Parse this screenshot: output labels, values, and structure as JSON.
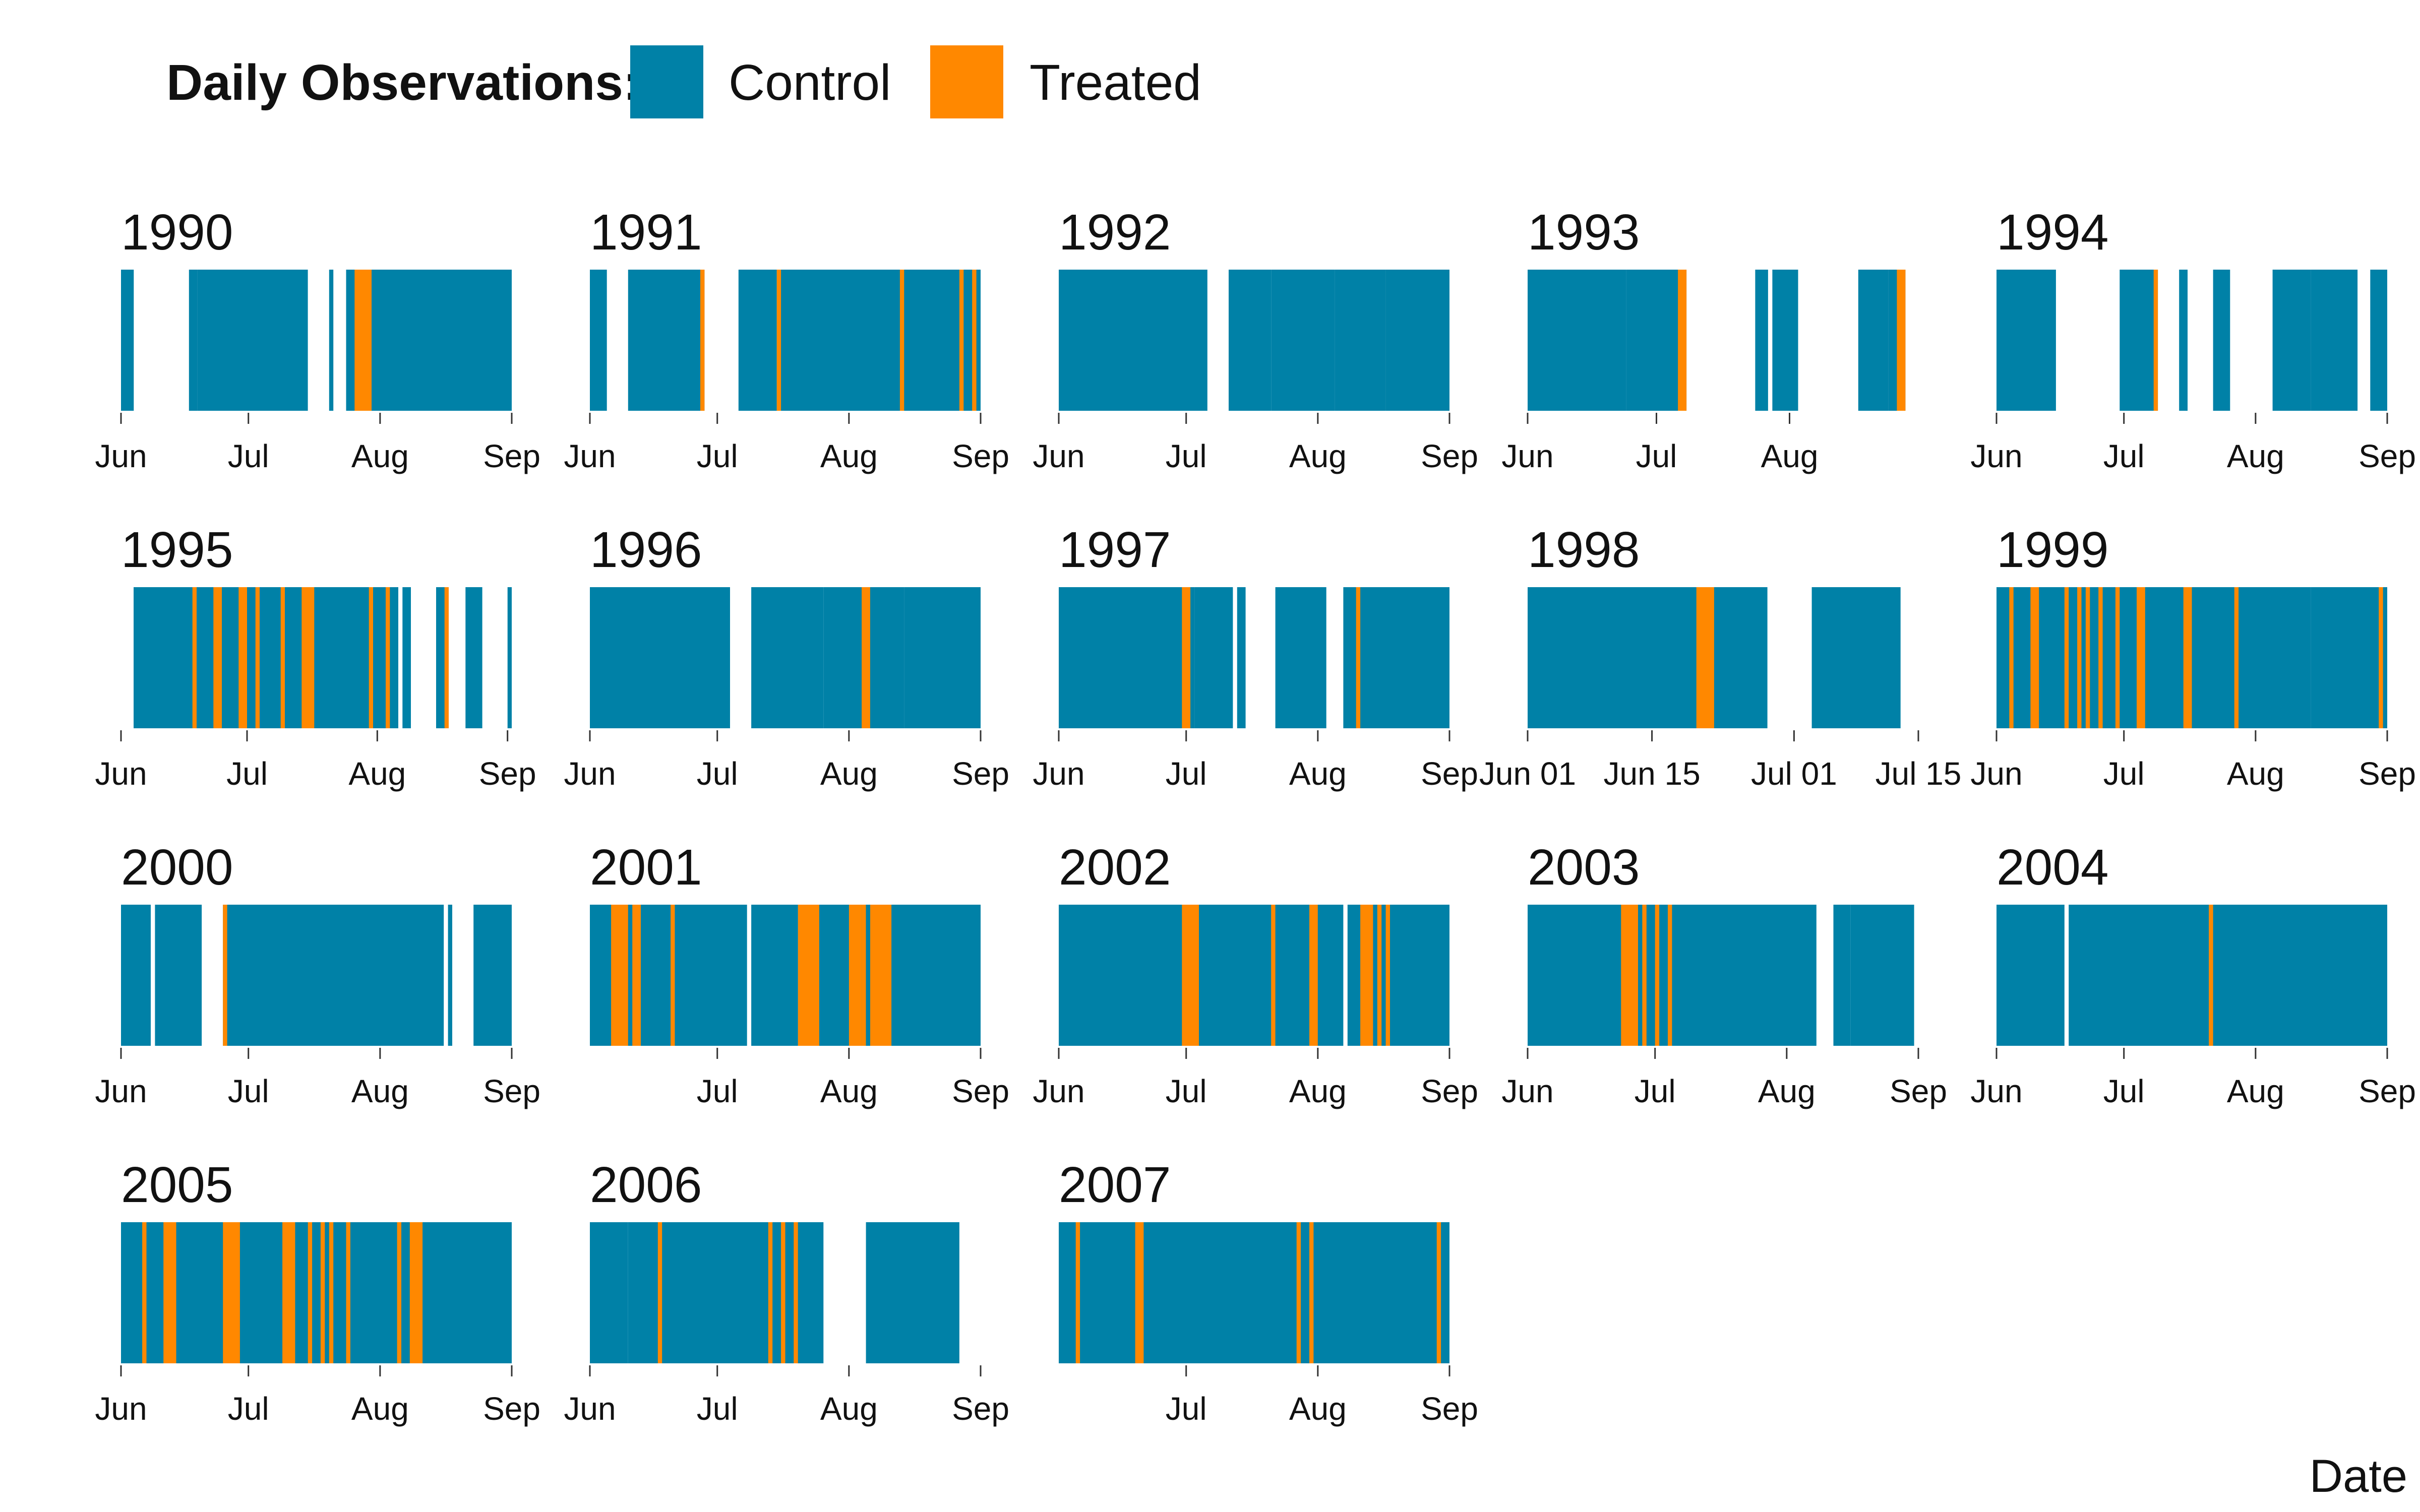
{
  "legend": {
    "title": "Daily Observations:",
    "items": [
      {
        "label": "Control",
        "color": "#0081A7"
      },
      {
        "label": "Treated",
        "color": "#FF8800"
      }
    ]
  },
  "chart_data": {
    "type": "timeline",
    "xlabel": "Date",
    "grid": false,
    "legend_position": "top-left",
    "colors": {
      "Control": "#0081A7",
      "Treated": "#FF8800"
    },
    "panels": [
      {
        "year": "1990",
        "xlim": [
          "1990-06-01",
          "1990-09-01"
        ],
        "ticks": [
          [
            "1990-06-01",
            "Jun"
          ],
          [
            "1990-07-01",
            "Jul"
          ],
          [
            "1990-08-01",
            "Aug"
          ],
          [
            "1990-09-01",
            "Sep"
          ]
        ],
        "control": [
          [
            "1990-06-01",
            "1990-06-04"
          ],
          [
            "1990-06-17",
            "1990-06-19"
          ],
          [
            "1990-06-19",
            "1990-07-15"
          ],
          [
            "1990-07-20",
            "1990-07-21"
          ],
          [
            "1990-07-24",
            "1990-09-01"
          ]
        ],
        "treated": [
          [
            "1990-07-26",
            "1990-07-30"
          ]
        ]
      },
      {
        "year": "1991",
        "xlim": [
          "1991-06-01",
          "1991-09-01"
        ],
        "ticks": [
          [
            "1991-06-01",
            "Jun"
          ],
          [
            "1991-07-01",
            "Jul"
          ],
          [
            "1991-08-01",
            "Aug"
          ],
          [
            "1991-09-01",
            "Sep"
          ]
        ],
        "control": [
          [
            "1991-06-01",
            "1991-06-05"
          ],
          [
            "1991-06-10",
            "1991-06-28"
          ],
          [
            "1991-07-06",
            "1991-07-15"
          ],
          [
            "1991-07-15",
            "1991-09-01"
          ]
        ],
        "treated": [
          [
            "1991-06-27",
            "1991-06-28"
          ],
          [
            "1991-07-15",
            "1991-07-16"
          ],
          [
            "1991-08-13",
            "1991-08-14"
          ],
          [
            "1991-08-27",
            "1991-08-28"
          ],
          [
            "1991-08-30",
            "1991-08-31"
          ]
        ]
      },
      {
        "year": "1992",
        "xlim": [
          "1992-06-01",
          "1992-09-01"
        ],
        "ticks": [
          [
            "1992-06-01",
            "Jun"
          ],
          [
            "1992-07-01",
            "Jul"
          ],
          [
            "1992-08-01",
            "Aug"
          ],
          [
            "1992-09-01",
            "Sep"
          ]
        ],
        "control": [
          [
            "1992-06-01",
            "1992-07-06"
          ],
          [
            "1992-07-11",
            "1992-07-21"
          ],
          [
            "1992-07-21",
            "1992-08-05"
          ],
          [
            "1992-08-05",
            "1992-08-17"
          ],
          [
            "1992-08-17",
            "1992-09-01"
          ]
        ],
        "treated": []
      },
      {
        "year": "1993",
        "xlim": [
          "1993-06-01",
          "1993-08-31"
        ],
        "ticks": [
          [
            "1993-06-01",
            "Jun"
          ],
          [
            "1993-07-01",
            "Jul"
          ],
          [
            "1993-08-01",
            "Aug"
          ]
        ],
        "control": [
          [
            "1993-06-01",
            "1993-06-24"
          ],
          [
            "1993-06-24",
            "1993-07-08"
          ],
          [
            "1993-07-24",
            "1993-07-27"
          ],
          [
            "1993-07-28",
            "1993-08-03"
          ],
          [
            "1993-08-17",
            "1993-08-24"
          ],
          [
            "1993-08-24",
            "1993-08-28"
          ]
        ],
        "treated": [
          [
            "1993-07-06",
            "1993-07-08"
          ],
          [
            "1993-08-26",
            "1993-08-28"
          ]
        ]
      },
      {
        "year": "1994",
        "xlim": [
          "1994-06-01",
          "1994-09-01"
        ],
        "ticks": [
          [
            "1994-06-01",
            "Jun"
          ],
          [
            "1994-07-01",
            "Jul"
          ],
          [
            "1994-08-01",
            "Aug"
          ],
          [
            "1994-09-01",
            "Sep"
          ]
        ],
        "control": [
          [
            "1994-06-01",
            "1994-06-15"
          ],
          [
            "1994-06-30",
            "1994-07-09"
          ],
          [
            "1994-07-14",
            "1994-07-16"
          ],
          [
            "1994-07-22",
            "1994-07-26"
          ],
          [
            "1994-08-05",
            "1994-08-14"
          ],
          [
            "1994-08-14",
            "1994-08-25"
          ],
          [
            "1994-08-28",
            "1994-09-01"
          ]
        ],
        "treated": [
          [
            "1994-07-08",
            "1994-07-09"
          ]
        ]
      },
      {
        "year": "1995",
        "xlim": [
          "1995-05-31",
          "1995-09-01"
        ],
        "ticks": [
          [
            "1995-05-31",
            "Jun"
          ],
          [
            "1995-06-30",
            "Jul"
          ],
          [
            "1995-07-31",
            "Aug"
          ],
          [
            "1995-08-31",
            "Sep"
          ]
        ],
        "control": [
          [
            "1995-06-03",
            "1995-08-05"
          ],
          [
            "1995-08-06",
            "1995-08-08"
          ],
          [
            "1995-08-14",
            "1995-08-17"
          ],
          [
            "1995-08-21",
            "1995-08-25"
          ],
          [
            "1995-08-31",
            "1995-09-01"
          ]
        ],
        "treated": [
          [
            "1995-06-17",
            "1995-06-18"
          ],
          [
            "1995-06-22",
            "1995-06-24"
          ],
          [
            "1995-06-28",
            "1995-06-30"
          ],
          [
            "1995-07-02",
            "1995-07-03"
          ],
          [
            "1995-07-08",
            "1995-07-09"
          ],
          [
            "1995-07-13",
            "1995-07-16"
          ],
          [
            "1995-07-29",
            "1995-07-30"
          ],
          [
            "1995-08-02",
            "1995-08-03"
          ],
          [
            "1995-08-16",
            "1995-08-17"
          ]
        ]
      },
      {
        "year": "1996",
        "xlim": [
          "1996-06-01",
          "1996-09-01"
        ],
        "ticks": [
          [
            "1996-06-01",
            "Jun"
          ],
          [
            "1996-07-01",
            "Jul"
          ],
          [
            "1996-08-01",
            "Aug"
          ],
          [
            "1996-09-01",
            "Sep"
          ]
        ],
        "control": [
          [
            "1996-06-01",
            "1996-07-04"
          ],
          [
            "1996-07-09",
            "1996-07-26"
          ],
          [
            "1996-07-26",
            "1996-08-14"
          ],
          [
            "1996-08-14",
            "1996-09-01"
          ]
        ],
        "treated": [
          [
            "1996-08-04",
            "1996-08-06"
          ]
        ]
      },
      {
        "year": "1997",
        "xlim": [
          "1997-06-01",
          "1997-09-01"
        ],
        "ticks": [
          [
            "1997-06-01",
            "Jun"
          ],
          [
            "1997-07-01",
            "Jul"
          ],
          [
            "1997-08-01",
            "Aug"
          ],
          [
            "1997-09-01",
            "Sep"
          ]
        ],
        "control": [
          [
            "1997-06-01",
            "1997-07-03"
          ],
          [
            "1997-07-03",
            "1997-07-12"
          ],
          [
            "1997-07-13",
            "1997-07-15"
          ],
          [
            "1997-07-22",
            "1997-08-03"
          ],
          [
            "1997-08-07",
            "1997-09-01"
          ]
        ],
        "treated": [
          [
            "1997-06-30",
            "1997-07-02"
          ],
          [
            "1997-08-10",
            "1997-08-11"
          ]
        ]
      },
      {
        "year": "1998",
        "xlim": [
          "1998-06-01",
          "1998-07-15"
        ],
        "ticks": [
          [
            "1998-06-01",
            "Jun 01"
          ],
          [
            "1998-06-15",
            "Jun 15"
          ],
          [
            "1998-07-01",
            "Jul 01"
          ],
          [
            "1998-07-15",
            "Jul 15"
          ]
        ],
        "control": [
          [
            "1998-06-01",
            "1998-06-28"
          ],
          [
            "1998-07-03",
            "1998-07-13"
          ]
        ],
        "treated": [
          [
            "1998-06-20",
            "1998-06-22"
          ]
        ]
      },
      {
        "year": "1999",
        "xlim": [
          "1999-06-01",
          "1999-09-01"
        ],
        "ticks": [
          [
            "1999-06-01",
            "Jun"
          ],
          [
            "1999-07-01",
            "Jul"
          ],
          [
            "1999-08-01",
            "Aug"
          ],
          [
            "1999-09-01",
            "Sep"
          ]
        ],
        "control": [
          [
            "1999-06-01",
            "1999-08-06"
          ],
          [
            "1999-08-06",
            "1999-08-14"
          ],
          [
            "1999-08-14",
            "1999-09-01"
          ]
        ],
        "treated": [
          [
            "1999-06-04",
            "1999-06-05"
          ],
          [
            "1999-06-09",
            "1999-06-11"
          ],
          [
            "1999-06-17",
            "1999-06-18"
          ],
          [
            "1999-06-20",
            "1999-06-21"
          ],
          [
            "1999-06-22",
            "1999-06-23"
          ],
          [
            "1999-06-25",
            "1999-06-26"
          ],
          [
            "1999-06-29",
            "1999-06-30"
          ],
          [
            "1999-07-04",
            "1999-07-06"
          ],
          [
            "1999-07-15",
            "1999-07-17"
          ],
          [
            "1999-07-27",
            "1999-07-28"
          ],
          [
            "1999-08-30",
            "1999-08-31"
          ]
        ]
      },
      {
        "year": "2000",
        "xlim": [
          "2000-06-01",
          "2000-09-01"
        ],
        "ticks": [
          [
            "2000-06-01",
            "Jun"
          ],
          [
            "2000-07-01",
            "Jul"
          ],
          [
            "2000-08-01",
            "Aug"
          ],
          [
            "2000-09-01",
            "Sep"
          ]
        ],
        "control": [
          [
            "2000-05-31",
            "2000-06-08"
          ],
          [
            "2000-06-09",
            "2000-06-20"
          ],
          [
            "2000-06-25",
            "2000-08-16"
          ],
          [
            "2000-08-17",
            "2000-08-18"
          ],
          [
            "2000-08-23",
            "2000-09-01"
          ]
        ],
        "treated": [
          [
            "2000-06-25",
            "2000-06-26"
          ]
        ]
      },
      {
        "year": "2001",
        "xlim": [
          "2001-06-01",
          "2001-09-01"
        ],
        "ticks": [
          [
            "2001-07-01",
            "Jul"
          ],
          [
            "2001-08-01",
            "Aug"
          ],
          [
            "2001-09-01",
            "Sep"
          ]
        ],
        "control": [
          [
            "2001-06-01",
            "2001-07-08"
          ],
          [
            "2001-07-09",
            "2001-07-20"
          ],
          [
            "2001-07-20",
            "2001-09-01"
          ]
        ],
        "treated": [
          [
            "2001-06-06",
            "2001-06-10"
          ],
          [
            "2001-06-11",
            "2001-06-13"
          ],
          [
            "2001-06-20",
            "2001-06-21"
          ],
          [
            "2001-07-20",
            "2001-07-25"
          ],
          [
            "2001-08-01",
            "2001-08-04"
          ],
          [
            "2001-08-04",
            "2001-08-05"
          ],
          [
            "2001-08-06",
            "2001-08-11"
          ]
        ]
      },
      {
        "year": "2002",
        "xlim": [
          "2002-06-01",
          "2002-09-01"
        ],
        "ticks": [
          [
            "2002-06-01",
            "Jun"
          ],
          [
            "2002-07-01",
            "Jul"
          ],
          [
            "2002-08-01",
            "Aug"
          ],
          [
            "2002-09-01",
            "Sep"
          ]
        ],
        "control": [
          [
            "2002-06-01",
            "2002-08-07"
          ],
          [
            "2002-08-08",
            "2002-09-01"
          ]
        ],
        "treated": [
          [
            "2002-06-30",
            "2002-07-04"
          ],
          [
            "2002-07-21",
            "2002-07-22"
          ],
          [
            "2002-07-30",
            "2002-08-01"
          ],
          [
            "2002-08-11",
            "2002-08-14"
          ],
          [
            "2002-08-15",
            "2002-08-16"
          ],
          [
            "2002-08-17",
            "2002-08-18"
          ]
        ]
      },
      {
        "year": "2003",
        "xlim": [
          "2003-06-01",
          "2003-09-01"
        ],
        "ticks": [
          [
            "2003-06-01",
            "Jun"
          ],
          [
            "2003-07-01",
            "Jul"
          ],
          [
            "2003-08-01",
            "Aug"
          ],
          [
            "2003-09-01",
            "Sep"
          ]
        ],
        "control": [
          [
            "2003-06-01",
            "2003-08-08"
          ],
          [
            "2003-08-12",
            "2003-08-16"
          ],
          [
            "2003-08-16",
            "2003-08-31"
          ]
        ],
        "treated": [
          [
            "2003-06-23",
            "2003-06-27"
          ],
          [
            "2003-06-28",
            "2003-06-29"
          ],
          [
            "2003-07-01",
            "2003-07-02"
          ],
          [
            "2003-07-04",
            "2003-07-05"
          ]
        ]
      },
      {
        "year": "2004",
        "xlim": [
          "2004-06-01",
          "2004-09-01"
        ],
        "ticks": [
          [
            "2004-06-01",
            "Jun"
          ],
          [
            "2004-07-01",
            "Jul"
          ],
          [
            "2004-08-01",
            "Aug"
          ],
          [
            "2004-09-01",
            "Sep"
          ]
        ],
        "control": [
          [
            "2004-06-01",
            "2004-06-17"
          ],
          [
            "2004-06-18",
            "2004-07-21"
          ],
          [
            "2004-07-21",
            "2004-09-01"
          ]
        ],
        "treated": [
          [
            "2004-07-21",
            "2004-07-22"
          ]
        ]
      },
      {
        "year": "2005",
        "xlim": [
          "2005-06-01",
          "2005-09-01"
        ],
        "ticks": [
          [
            "2005-06-01",
            "Jun"
          ],
          [
            "2005-07-01",
            "Jul"
          ],
          [
            "2005-08-01",
            "Aug"
          ],
          [
            "2005-09-01",
            "Sep"
          ]
        ],
        "control": [
          [
            "2005-06-01",
            "2005-09-01"
          ]
        ],
        "treated": [
          [
            "2005-06-06",
            "2005-06-07"
          ],
          [
            "2005-06-11",
            "2005-06-14"
          ],
          [
            "2005-06-25",
            "2005-06-29"
          ],
          [
            "2005-07-09",
            "2005-07-12"
          ],
          [
            "2005-07-15",
            "2005-07-16"
          ],
          [
            "2005-07-18",
            "2005-07-19"
          ],
          [
            "2005-07-20",
            "2005-07-21"
          ],
          [
            "2005-07-24",
            "2005-07-25"
          ],
          [
            "2005-08-05",
            "2005-08-06"
          ],
          [
            "2005-08-08",
            "2005-08-11"
          ]
        ]
      },
      {
        "year": "2006",
        "xlim": [
          "2006-06-01",
          "2006-09-01"
        ],
        "ticks": [
          [
            "2006-06-01",
            "Jun"
          ],
          [
            "2006-07-01",
            "Jul"
          ],
          [
            "2006-08-01",
            "Aug"
          ],
          [
            "2006-09-01",
            "Sep"
          ]
        ],
        "control": [
          [
            "2006-06-01",
            "2006-06-10"
          ],
          [
            "2006-06-10",
            "2006-07-26"
          ],
          [
            "2006-08-05",
            "2006-08-27"
          ]
        ],
        "treated": [
          [
            "2006-06-17",
            "2006-06-18"
          ],
          [
            "2006-07-13",
            "2006-07-14"
          ],
          [
            "2006-07-16",
            "2006-07-17"
          ],
          [
            "2006-07-19",
            "2006-07-20"
          ]
        ]
      },
      {
        "year": "2007",
        "xlim": [
          "2007-06-01",
          "2007-09-01"
        ],
        "ticks": [
          [
            "2007-07-01",
            "Jul"
          ],
          [
            "2007-08-01",
            "Aug"
          ],
          [
            "2007-09-01",
            "Sep"
          ]
        ],
        "control": [
          [
            "2007-06-01",
            "2007-09-01"
          ]
        ],
        "treated": [
          [
            "2007-06-05",
            "2007-06-06"
          ],
          [
            "2007-06-19",
            "2007-06-21"
          ],
          [
            "2007-07-27",
            "2007-07-28"
          ],
          [
            "2007-07-30",
            "2007-07-31"
          ],
          [
            "2007-08-29",
            "2007-08-30"
          ]
        ]
      }
    ]
  }
}
